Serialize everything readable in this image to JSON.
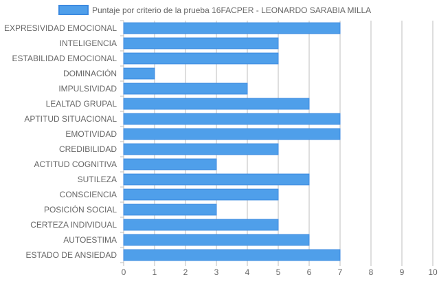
{
  "colors": {
    "bar_fill": "#4F9FEA",
    "bar_stroke": "#3C8AE0",
    "grid": "#BDBDBD",
    "text": "#666666"
  },
  "chart_data": {
    "type": "bar",
    "orientation": "horizontal",
    "legend": {
      "position": "top",
      "label": "Puntaje por criterio de la prueba 16FACPER - LEONARDO SARABIA MILLA"
    },
    "categories": [
      "EXPRESIVIDAD EMOCIONAL",
      "INTELIGENCIA",
      "ESTABILIDAD EMOCIONAL",
      "DOMINACIÓN",
      "IMPULSIVIDAD",
      "LEALTAD GRUPAL",
      "APTITUD SITUACIONAL",
      "EMOTIVIDAD",
      "CREDIBILIDAD",
      "ACTITUD COGNITIVA",
      "SUTILEZA",
      "CONSCIENCIA",
      "POSICIÓN SOCIAL",
      "CERTEZA INDIVIDUAL",
      "AUTOESTIMA",
      "ESTADO DE ANSIEDAD"
    ],
    "series": [
      {
        "name": "Puntaje por criterio de la prueba 16FACPER - LEONARDO SARABIA MILLA",
        "values": [
          7,
          5,
          5,
          1,
          4,
          6,
          7,
          7,
          5,
          3,
          6,
          5,
          3,
          5,
          6,
          7
        ]
      }
    ],
    "xlim": [
      0,
      10
    ],
    "x_ticks": [
      "0",
      "1",
      "2",
      "3",
      "4",
      "5",
      "6",
      "7",
      "8",
      "9",
      "10"
    ],
    "grid": true
  }
}
